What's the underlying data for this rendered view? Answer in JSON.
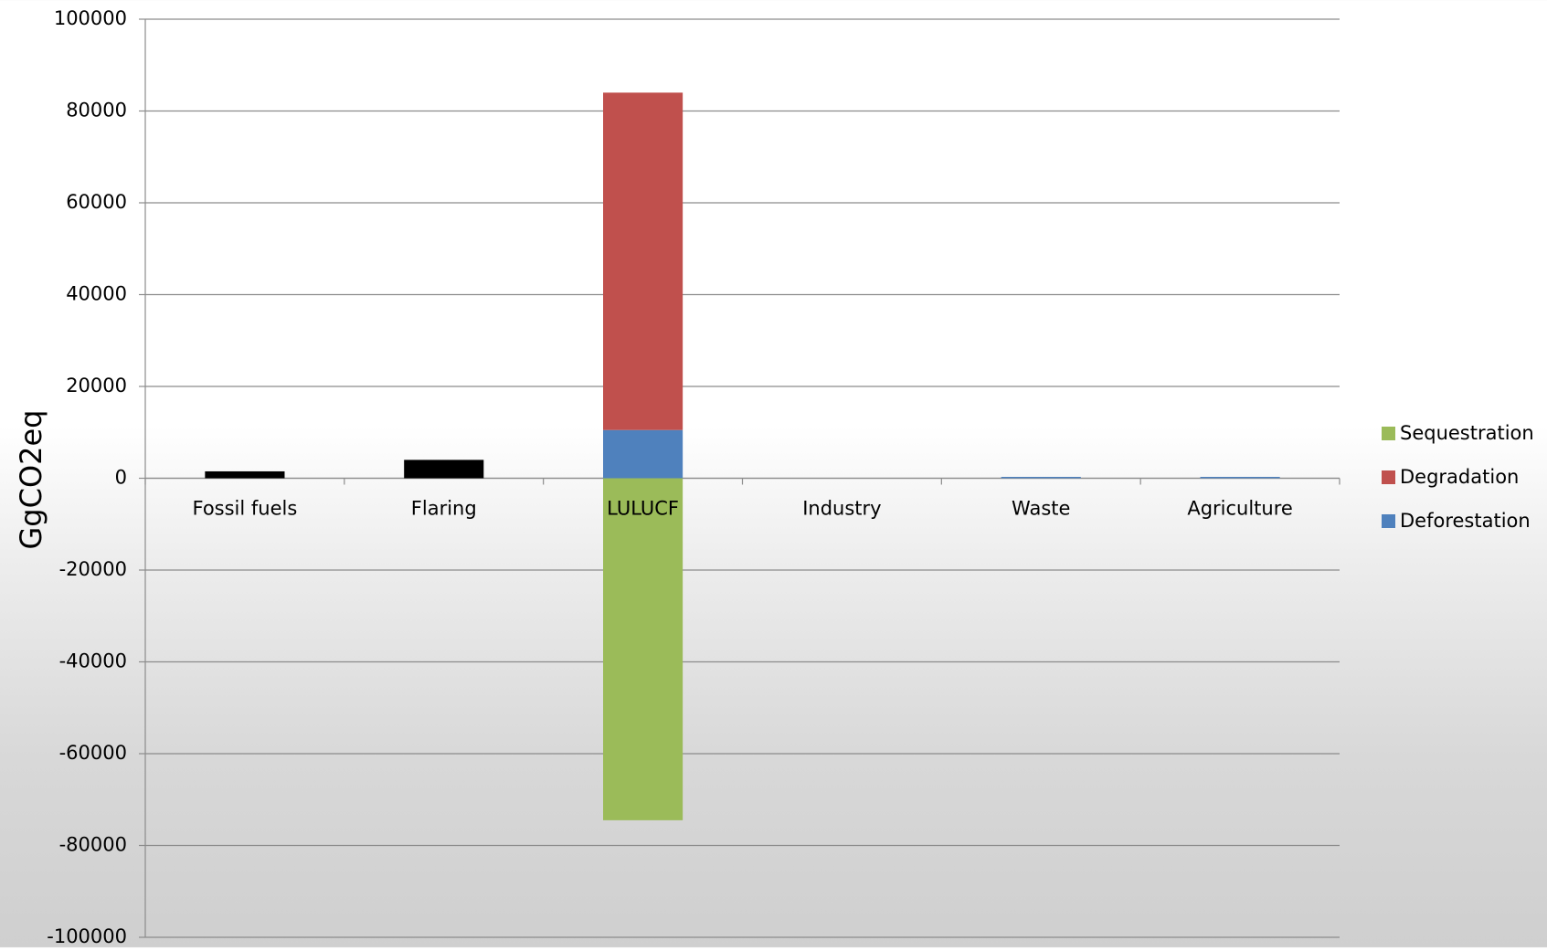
{
  "chart_data": {
    "type": "stacked-bar",
    "y_label": "GgCO2eq",
    "categories": [
      "Fossil fuels",
      "Flaring",
      "LULUCF",
      "Industry",
      "Waste",
      "Agriculture"
    ],
    "series": [
      {
        "color": "#000000",
        "values": [
          1500,
          4000,
          null,
          null,
          null,
          null
        ]
      },
      {
        "name": "Deforestation",
        "color": "#4f81bd",
        "values": [
          null,
          null,
          10500,
          null,
          300,
          300
        ]
      },
      {
        "name": "Degradation",
        "color": "#c0504d",
        "values": [
          null,
          null,
          73500,
          null,
          null,
          null
        ]
      },
      {
        "name": "Sequestration",
        "color": "#9bbb59",
        "values": [
          null,
          null,
          -74500,
          null,
          null,
          null
        ]
      }
    ],
    "ylim": [
      -100000,
      100000
    ],
    "yticks": [
      -100000,
      -80000,
      -60000,
      -40000,
      -20000,
      0,
      20000,
      40000,
      60000,
      80000,
      100000
    ],
    "grid": true
  }
}
